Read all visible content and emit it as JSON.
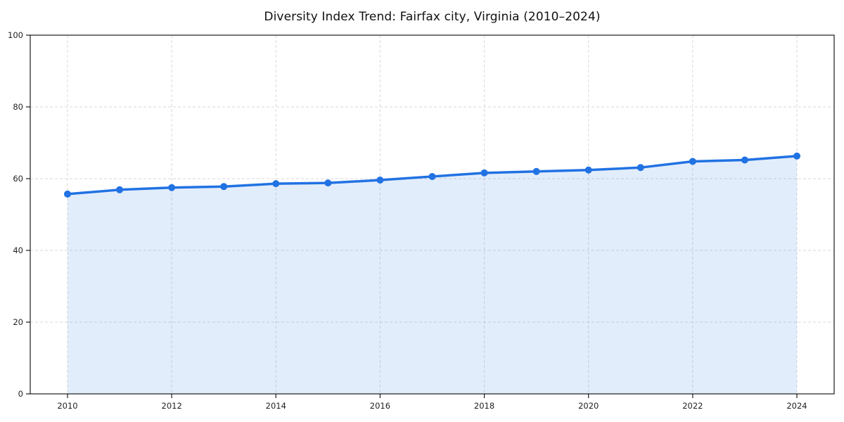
{
  "page": {
    "background": "#ffffff"
  },
  "chart_data": {
    "type": "line",
    "title": "Diversity Index Trend: Fairfax city, Virginia (2010–2024)",
    "xlabel": "",
    "ylabel": "",
    "x": [
      2010,
      2011,
      2012,
      2013,
      2014,
      2015,
      2016,
      2017,
      2018,
      2019,
      2020,
      2021,
      2022,
      2023,
      2024
    ],
    "series": [
      {
        "name": "Diversity Index",
        "values": [
          55.7,
          56.9,
          57.5,
          57.8,
          58.6,
          58.8,
          59.6,
          60.6,
          61.6,
          62.0,
          62.4,
          63.1,
          64.8,
          65.2,
          66.3
        ]
      }
    ],
    "ylim": [
      0,
      100
    ],
    "yticks": [
      0,
      20,
      40,
      60,
      80,
      100
    ],
    "xticks": [
      2010,
      2012,
      2014,
      2016,
      2018,
      2020,
      2022,
      2024
    ],
    "grid": true,
    "grid_style": "dashed",
    "legend": "none",
    "area_fill": true,
    "marker": "circle",
    "colors": {
      "line": "#2172e3",
      "marker": "#2172e3",
      "area": "rgba(33, 114, 227, 0.13)",
      "grid": "#d9d9d9",
      "spine": "#1a1a1a",
      "tick_label": "#1f1f1f",
      "title": "#111111",
      "background": "#ffffff"
    }
  }
}
